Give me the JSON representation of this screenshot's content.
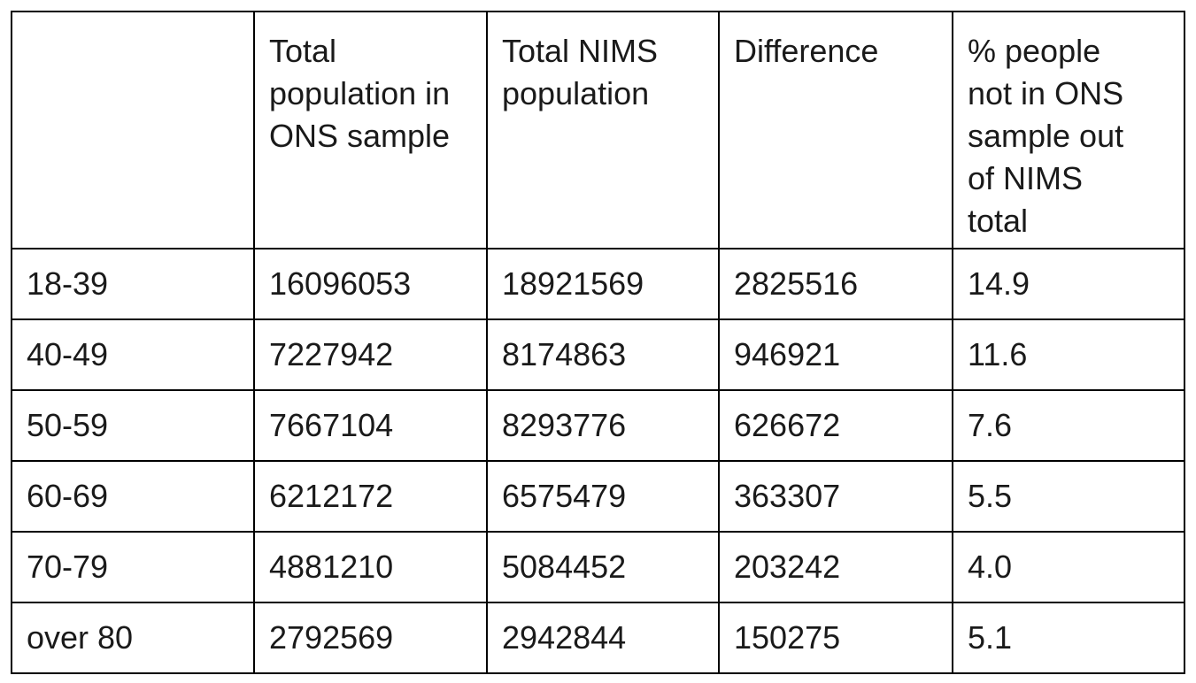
{
  "table": {
    "headers": [
      "Total population in ONS sample",
      "Total NIMS population",
      "Difference",
      "% people not in ONS sample out of NIMS total"
    ],
    "rows": [
      [
        "18-39",
        "16096053",
        "18921569",
        "2825516",
        "14.9"
      ],
      [
        "40-49",
        "7227942",
        "8174863",
        "946921",
        "11.6"
      ],
      [
        "50-59",
        "7667104",
        "8293776",
        "626672",
        "7.6"
      ],
      [
        "60-69",
        "6212172",
        "6575479",
        "363307",
        "5.5"
      ],
      [
        "70-79",
        "4881210",
        "5084452",
        "203242",
        "4.0"
      ],
      [
        "over 80",
        "2792569",
        "2942844",
        "150275",
        "5.1"
      ]
    ]
  }
}
